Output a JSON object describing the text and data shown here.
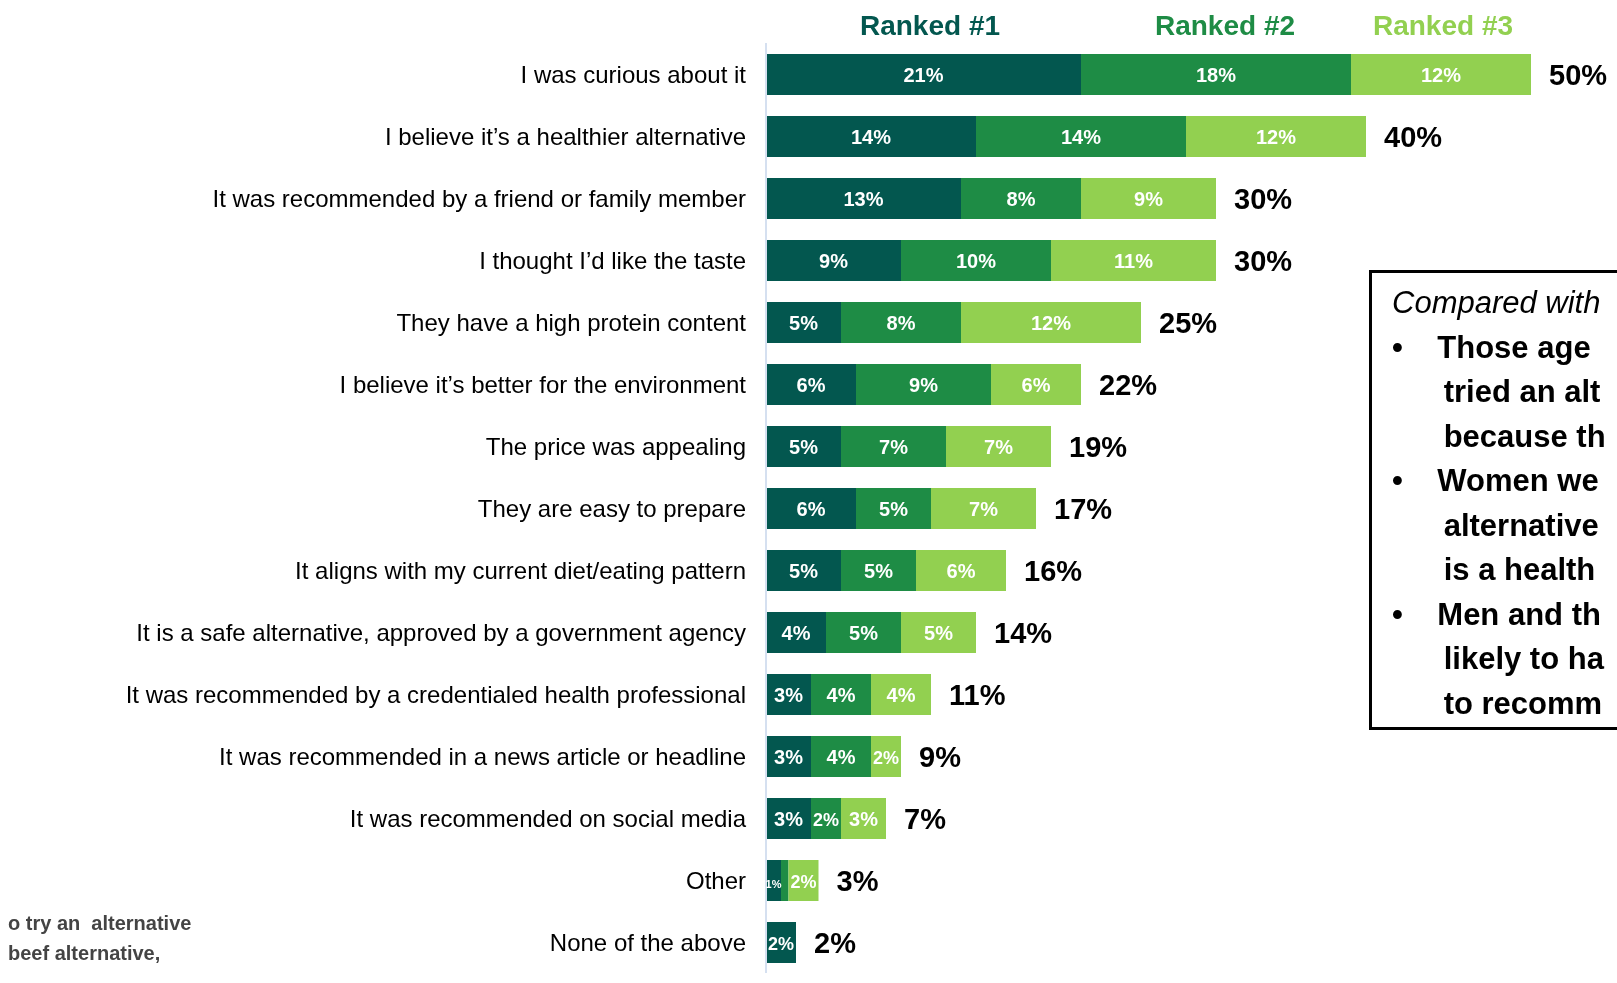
{
  "chart_data": {
    "type": "bar",
    "orientation": "horizontal",
    "stacked": true,
    "categories": [
      "I was curious about it",
      "I believe it’s a healthier alternative",
      "It was recommended by a friend or family member",
      "I thought I’d like the taste",
      "They have a high protein content",
      "I believe it’s better for the environment",
      "The price was appealing",
      "They are easy to prepare",
      "It aligns with my current diet/eating pattern",
      "It is a safe alternative, approved by a government agency",
      "It was recommended by a credentialed health professional",
      "It was recommended in a news article or headline",
      "It was recommended on social media",
      "Other",
      "None of the above"
    ],
    "series": [
      {
        "name": "Ranked #1",
        "color": "#03574f",
        "values": [
          21,
          14,
          13,
          9,
          5,
          6,
          5,
          6,
          5,
          4,
          3,
          3,
          3,
          1,
          2
        ],
        "value_labels": [
          "21%",
          "14%",
          "13%",
          "9%",
          "5%",
          "6%",
          "5%",
          "6%",
          "5%",
          "4%",
          "3%",
          "3%",
          "3%",
          "1%",
          "2%"
        ]
      },
      {
        "name": "Ranked #2",
        "color": "#1e8c45",
        "values": [
          18,
          14,
          8,
          10,
          8,
          9,
          7,
          5,
          5,
          5,
          4,
          4,
          2,
          0.5,
          null
        ],
        "value_labels": [
          "18%",
          "14%",
          "8%",
          "10%",
          "8%",
          "9%",
          "7%",
          "5%",
          "5%",
          "5%",
          "4%",
          "4%",
          "2%",
          null,
          null
        ]
      },
      {
        "name": "Ranked #3",
        "color": "#92d050",
        "values": [
          12,
          12,
          9,
          11,
          12,
          6,
          7,
          7,
          6,
          5,
          4,
          2,
          3,
          2,
          null
        ],
        "value_labels": [
          "12%",
          "12%",
          "9%",
          "11%",
          "12%",
          "6%",
          "7%",
          "7%",
          "6%",
          "5%",
          "4%",
          "2%",
          "3%",
          "2%",
          null
        ]
      }
    ],
    "totals": [
      "50%",
      "40%",
      "30%",
      "30%",
      "25%",
      "22%",
      "19%",
      "17%",
      "16%",
      "14%",
      "11%",
      "9%",
      "7%",
      "3%",
      "2%"
    ],
    "legend": "top",
    "annotations": [
      "Compared with\n•    Those age\n      tried an alt\n      because th\n•    Women we\n      alternative\n      is a health\n•    Men and th\n      likely to ha\n      to recomm",
      "o try an  alternative\nbeef alternative,"
    ]
  }
}
